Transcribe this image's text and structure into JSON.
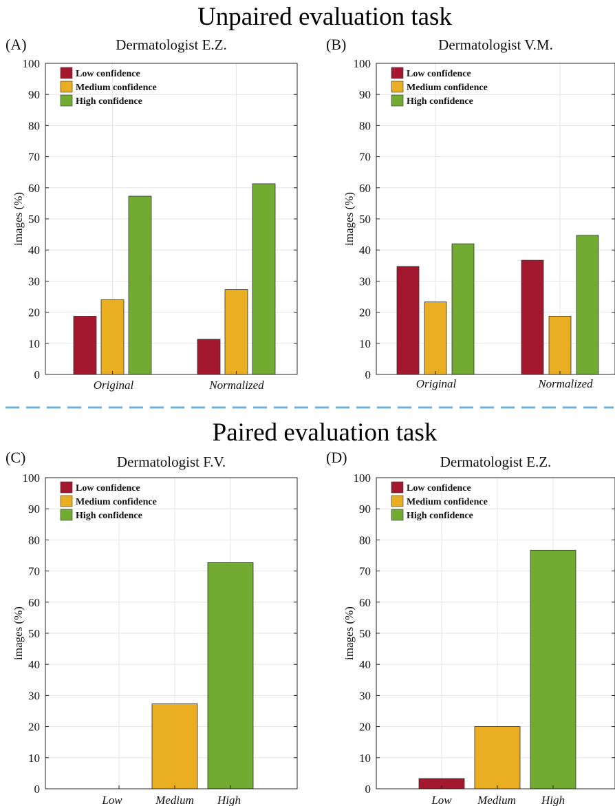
{
  "sections": [
    {
      "title": "Unpaired evaluation task"
    },
    {
      "title": "Paired evaluation task"
    }
  ],
  "legend_labels": [
    "Low confidence",
    "Medium confidence",
    "High confidence"
  ],
  "colors": {
    "low": "#A3172F",
    "medium": "#EAAE22",
    "high": "#72AB32",
    "divider": "#6FB0DA",
    "grid": "#e6e6e6",
    "axis": "#262626"
  },
  "chart_data": [
    {
      "panel_label": "(A)",
      "title": "Dermatologist E.Z.",
      "type": "bar",
      "layout": "grouped",
      "categories": [
        "Original",
        "Normalized"
      ],
      "series": [
        {
          "name": "Low confidence",
          "values": [
            18.7,
            11.3
          ]
        },
        {
          "name": "Medium confidence",
          "values": [
            24.0,
            27.3
          ]
        },
        {
          "name": "High confidence",
          "values": [
            57.3,
            61.3
          ]
        }
      ],
      "ylabel": "images (%)",
      "ylim": [
        0,
        100
      ],
      "yticks": [
        0,
        10,
        20,
        30,
        40,
        50,
        60,
        70,
        80,
        90,
        100
      ],
      "grid": true,
      "legend": "top-left"
    },
    {
      "panel_label": "(B)",
      "title": "Dermatologist V.M.",
      "type": "bar",
      "layout": "grouped",
      "categories": [
        "Original",
        "Normalized"
      ],
      "series": [
        {
          "name": "Low confidence",
          "values": [
            34.7,
            36.7
          ]
        },
        {
          "name": "Medium confidence",
          "values": [
            23.3,
            18.7
          ]
        },
        {
          "name": "High confidence",
          "values": [
            42.0,
            44.7
          ]
        }
      ],
      "ylabel": "images (%)",
      "ylim": [
        0,
        100
      ],
      "yticks": [
        0,
        10,
        20,
        30,
        40,
        50,
        60,
        70,
        80,
        90,
        100
      ],
      "grid": true,
      "legend": "top-left"
    },
    {
      "panel_label": "(C)",
      "title": "Dermatologist F.V.",
      "type": "bar",
      "layout": "single",
      "categories": [
        "Low",
        "Medium",
        "High"
      ],
      "values": [
        0,
        27.3,
        72.7
      ],
      "ylabel": "images (%)",
      "ylim": [
        0,
        100
      ],
      "yticks": [
        0,
        10,
        20,
        30,
        40,
        50,
        60,
        70,
        80,
        90,
        100
      ],
      "grid": true,
      "legend": "top-left"
    },
    {
      "panel_label": "(D)",
      "title": "Dermatologist E.Z.",
      "type": "bar",
      "layout": "single",
      "categories": [
        "Low",
        "Medium",
        "High"
      ],
      "values": [
        3.3,
        20.0,
        76.7
      ],
      "ylabel": "images (%)",
      "ylim": [
        0,
        100
      ],
      "yticks": [
        0,
        10,
        20,
        30,
        40,
        50,
        60,
        70,
        80,
        90,
        100
      ],
      "grid": true,
      "legend": "top-left"
    }
  ]
}
